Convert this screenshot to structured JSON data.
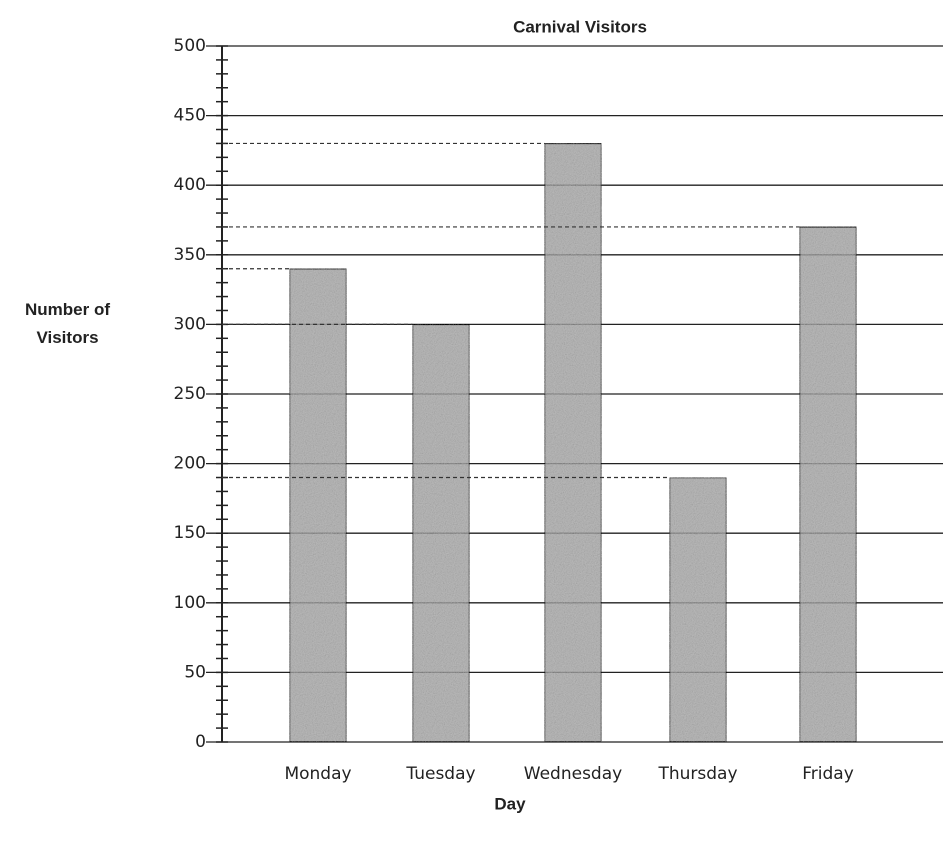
{
  "chart_data": {
    "type": "bar",
    "title": "Carnival Visitors",
    "x_label": "Day",
    "y_label": "Number of Visitors",
    "categories": [
      "Monday",
      "Tuesday",
      "Wednesday",
      "Thursday",
      "Friday"
    ],
    "values": [
      340,
      300,
      430,
      190,
      370
    ],
    "color": "#a8a8a8",
    "ylim": [
      0,
      500
    ],
    "yticks": [
      0,
      50,
      100,
      150,
      200,
      250,
      300,
      350,
      400,
      450,
      500
    ],
    "minor_tick_interval": 10,
    "grid": true
  }
}
